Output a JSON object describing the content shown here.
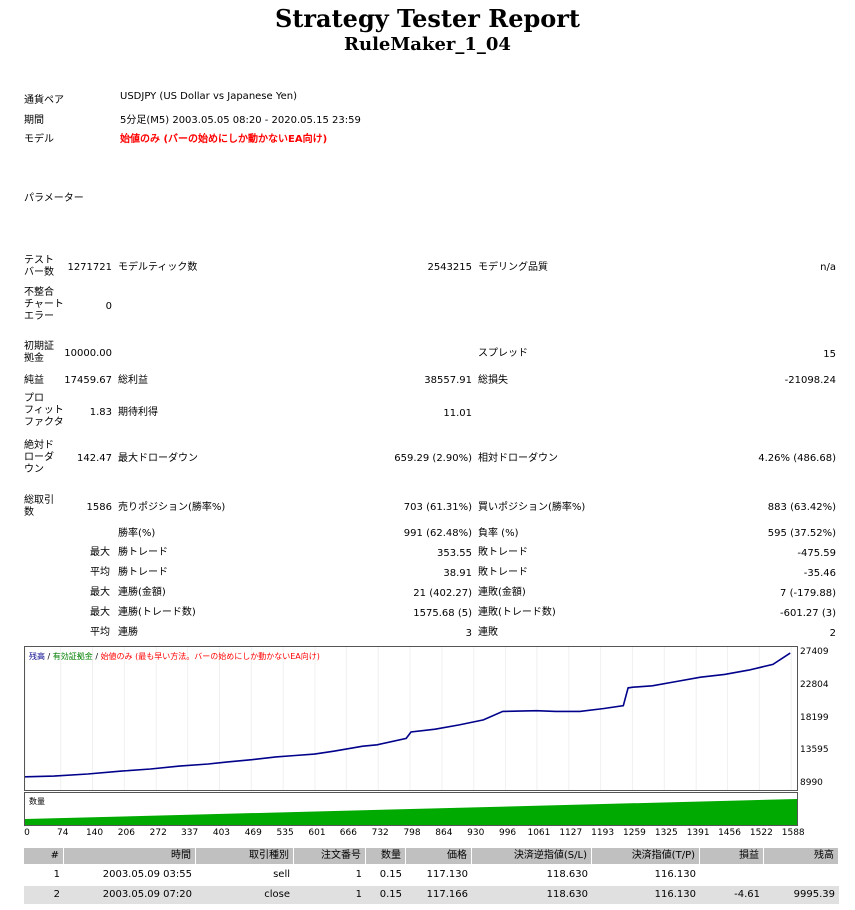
{
  "header": {
    "title": "Strategy Tester Report",
    "subtitle": "RuleMaker_1_04"
  },
  "info": {
    "pair_label": "通貨ペア",
    "pair_value": "USDJPY (US Dollar vs Japanese Yen)",
    "period_label": "期間",
    "period_value": "5分足(M5) 2003.05.05 08:20 - 2020.05.15 23:59",
    "model_label": "モデル",
    "model_value": "始値のみ (バーの始めにしか動かないEA向け)",
    "params_label": "パラメーター"
  },
  "stats": {
    "bars_label": "テスト\nバー数",
    "bars_value": "1271721",
    "ticks_label": "モデルティック数",
    "ticks_value": "2543215",
    "quality_label": "モデリング品質",
    "quality_value": "n/a",
    "mismatch_label": "不整合\nチャート\nエラー",
    "mismatch_value": "0",
    "deposit_label": "初期証\n拠金",
    "deposit_value": "10000.00",
    "spread_label": "スプレッド",
    "spread_value": "15",
    "net_label": "純益",
    "net_value": "17459.67",
    "gross_profit_label": "総利益",
    "gross_profit_value": "38557.91",
    "gross_loss_label": "総損失",
    "gross_loss_value": "-21098.24",
    "pf_label": "プロ\nフィット\nファクタ",
    "pf_value": "1.83",
    "expected_label": "期待利得",
    "expected_value": "11.01",
    "abs_dd_label": "絶対ド\nローダ\nウン",
    "abs_dd_value": "142.47",
    "max_dd_label": "最大ドローダウン",
    "max_dd_value": "659.29 (2.90%)",
    "rel_dd_label": "相対ドローダウン",
    "rel_dd_value": "4.26% (486.68)",
    "trades_label": "総取引\n数",
    "trades_value": "1586",
    "short_label": "売りポジション(勝率%)",
    "short_value": "703 (61.31%)",
    "long_label": "買いポジション(勝率%)",
    "long_value": "883 (63.42%)",
    "win_rate_label": "勝率(%)",
    "win_rate_value": "991 (62.48%)",
    "loss_rate_label": "負率 (%)",
    "loss_rate_value": "595 (37.52%)",
    "max_label": "最大",
    "avg_label": "平均",
    "largest_win_label": "勝トレード",
    "largest_win_value": "353.55",
    "largest_loss_label": "敗トレード",
    "largest_loss_value": "-475.59",
    "avg_win_label": "勝トレード",
    "avg_win_value": "38.91",
    "avg_loss_label": "敗トレード",
    "avg_loss_value": "-35.46",
    "cons_win_money_label": "連勝(金額)",
    "cons_win_money_value": "21 (402.27)",
    "cons_loss_money_label": "連敗(金額)",
    "cons_loss_money_value": "7 (-179.88)",
    "cons_win_count_label": "連勝(トレード数)",
    "cons_win_count_value": "1575.68 (5)",
    "cons_loss_count_label": "連敗(トレード数)",
    "cons_loss_count_value": "-601.27 (3)",
    "avg_cons_win_label": "連勝",
    "avg_cons_win_value": "3",
    "avg_cons_loss_label": "連敗",
    "avg_cons_loss_value": "2"
  },
  "chart_data": {
    "type": "line",
    "legend_balance": "残高",
    "legend_sep1": " / ",
    "legend_equity": "有効証拠金",
    "legend_sep2": " / ",
    "legend_model": "始値のみ (最も早い方法。バーの始めにしか動かないEA向け)",
    "volume_label": "数量",
    "yticks": [
      "27409",
      "22804",
      "18199",
      "13595",
      "8990"
    ],
    "ylim": [
      8990,
      27409
    ],
    "xticks": [
      "0",
      "74",
      "140",
      "206",
      "272",
      "337",
      "403",
      "469",
      "535",
      "601",
      "666",
      "732",
      "798",
      "864",
      "930",
      "996",
      "1061",
      "1127",
      "1193",
      "1259",
      "1325",
      "1391",
      "1456",
      "1522",
      "1588"
    ],
    "xlim": [
      0,
      1600
    ],
    "series": [
      {
        "name": "残高",
        "color": "#00008b",
        "x": [
          0,
          60,
          130,
          200,
          260,
          320,
          380,
          420,
          470,
          520,
          560,
          600,
          640,
          700,
          730,
          790,
          800,
          850,
          900,
          950,
          990,
          1060,
          1100,
          1150,
          1200,
          1240,
          1250,
          1260,
          1300,
          1350,
          1400,
          1450,
          1500,
          1550,
          1586
        ],
        "values": [
          10000,
          10100,
          10400,
          10800,
          11100,
          11500,
          11800,
          12100,
          12400,
          12800,
          13000,
          13200,
          13600,
          14300,
          14500,
          15400,
          16300,
          16700,
          17300,
          18000,
          19200,
          19300,
          19200,
          19200,
          19600,
          20000,
          22500,
          22600,
          22800,
          23400,
          24000,
          24400,
          25000,
          25800,
          27400
        ]
      }
    ],
    "volume_values": [
      0.15,
      0.15,
      0.15,
      0.15
    ]
  },
  "table": {
    "headers": [
      "#",
      "時間",
      "取引種別",
      "注文番号",
      "数量",
      "価格",
      "決済逆指値(S/L)",
      "決済指値(T/P)",
      "損益",
      "残高"
    ],
    "rows": [
      [
        "1",
        "2003.05.09 03:55",
        "sell",
        "1",
        "0.15",
        "117.130",
        "118.630",
        "116.130",
        "",
        ""
      ],
      [
        "2",
        "2003.05.09 07:20",
        "close",
        "1",
        "0.15",
        "117.166",
        "118.630",
        "116.130",
        "-4.61",
        "9995.39"
      ]
    ]
  }
}
